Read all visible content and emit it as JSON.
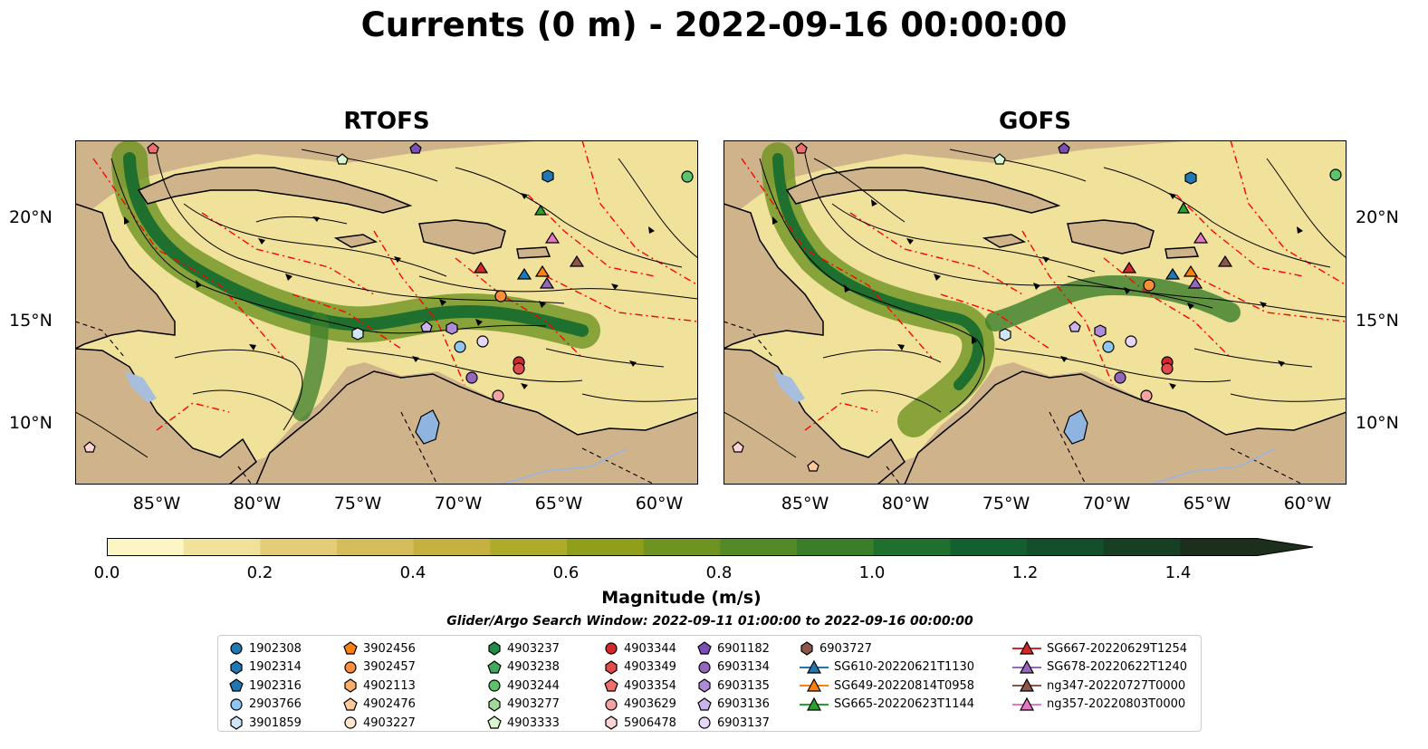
{
  "title": "Currents (0 m) - 2022-09-16 00:00:00",
  "panels": [
    {
      "id": "rtofs",
      "title": "RTOFS"
    },
    {
      "id": "gofs",
      "title": "GOFS"
    }
  ],
  "lat_ticks": [
    "20°N",
    "15°N",
    "10°N"
  ],
  "lon_ticks": [
    "85°W",
    "80°W",
    "75°W",
    "70°W",
    "65°W",
    "60°W"
  ],
  "map_extent": {
    "lon": [
      -89,
      -58
    ],
    "lat": [
      7,
      24
    ]
  },
  "colorbar": {
    "label": "Magnitude (m/s)",
    "ticks": [
      "0.0",
      "0.2",
      "0.4",
      "0.6",
      "0.8",
      "1.0",
      "1.2",
      "1.4"
    ],
    "range": [
      0,
      1.5
    ],
    "extend": "max",
    "colors": [
      "#fcf6c4",
      "#f1e29b",
      "#e3cd77",
      "#d6bd5c",
      "#c5b13f",
      "#aeaa2a",
      "#8f9e1b",
      "#6e9321",
      "#548a25",
      "#3b7e29",
      "#1f6f2e",
      "#145f2f",
      "#124f2a",
      "#163f24",
      "#1b2f1c"
    ]
  },
  "legend": {
    "title": "Glider/Argo Search Window: 2022-09-11 01:00:00 to 2022-09-16 00:00:00",
    "columns": [
      [
        {
          "label": "1902308",
          "marker": "circle",
          "color": "#1f77b4"
        },
        {
          "label": "1902314",
          "marker": "hexagon",
          "color": "#1f77b4"
        },
        {
          "label": "1902316",
          "marker": "pentagon",
          "color": "#1f77b4"
        },
        {
          "label": "2903766",
          "marker": "circle",
          "color": "#8ec8f0"
        },
        {
          "label": "3901859",
          "marker": "hexagon",
          "color": "#cfe6f8"
        }
      ],
      [
        {
          "label": "3902456",
          "marker": "pentagon",
          "color": "#ff7f0e"
        },
        {
          "label": "3902457",
          "marker": "circle",
          "color": "#fd8d3c"
        },
        {
          "label": "4902113",
          "marker": "hexagon",
          "color": "#fdae6b"
        },
        {
          "label": "4902476",
          "marker": "pentagon",
          "color": "#fdc99a"
        },
        {
          "label": "4903227",
          "marker": "circle",
          "color": "#fee6ce"
        }
      ],
      [
        {
          "label": "4903237",
          "marker": "hexagon",
          "color": "#238b45"
        },
        {
          "label": "4903238",
          "marker": "pentagon",
          "color": "#41ab5d"
        },
        {
          "label": "4903244",
          "marker": "circle",
          "color": "#5cc36a"
        },
        {
          "label": "4903277",
          "marker": "hexagon",
          "color": "#a1d99b"
        },
        {
          "label": "4903333",
          "marker": "pentagon",
          "color": "#d9f7cf"
        }
      ],
      [
        {
          "label": "4903344",
          "marker": "circle",
          "color": "#d62728"
        },
        {
          "label": "4903349",
          "marker": "hexagon",
          "color": "#e34a4a"
        },
        {
          "label": "4903354",
          "marker": "pentagon",
          "color": "#ef6f6c"
        },
        {
          "label": "4903629",
          "marker": "circle",
          "color": "#f4a3a3"
        },
        {
          "label": "5906478",
          "marker": "hexagon",
          "color": "#fbd5d5"
        }
      ],
      [
        {
          "label": "6901182",
          "marker": "pentagon",
          "color": "#7b4fb5"
        },
        {
          "label": "6903134",
          "marker": "circle",
          "color": "#9467bd"
        },
        {
          "label": "6903135",
          "marker": "hexagon",
          "color": "#ad8bd6"
        },
        {
          "label": "6903136",
          "marker": "pentagon",
          "color": "#cbb3ec"
        },
        {
          "label": "6903137",
          "marker": "circle",
          "color": "#e6d6f7"
        }
      ],
      [
        {
          "label": "6903727",
          "marker": "hexagon",
          "color": "#8c564b"
        },
        {
          "label": "SG610-20220621T1130",
          "marker": "triangle",
          "color": "#1f77b4",
          "line": true
        },
        {
          "label": "SG649-20220814T0958",
          "marker": "triangle",
          "color": "#ff7f0e",
          "line": true
        },
        {
          "label": "SG665-20220623T1144",
          "marker": "triangle",
          "color": "#2ca02c",
          "line": true
        }
      ],
      [
        {
          "label": "SG667-20220629T1254",
          "marker": "triangle",
          "color": "#d62728",
          "line": true
        },
        {
          "label": "SG678-20220622T1240",
          "marker": "triangle",
          "color": "#9467bd",
          "line": true
        },
        {
          "label": "ng347-20220727T0000",
          "marker": "triangle",
          "color": "#8c564b",
          "line": true
        },
        {
          "label": "ng357-20220803T0000",
          "marker": "triangle",
          "color": "#e377c2",
          "line": true
        }
      ]
    ]
  },
  "colors": {
    "land": "#cfb38b",
    "lakes": "#8fb4e0",
    "eez_boundary": "#ff0000",
    "current_core": "#3f7f2a"
  }
}
